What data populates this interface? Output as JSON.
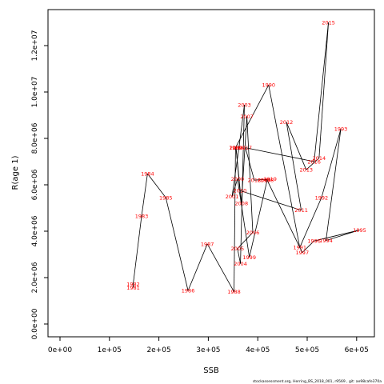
{
  "chart_data": {
    "type": "line",
    "xlabel": "SSB",
    "ylabel": "R(age 1)",
    "xlim": [
      0,
      620000
    ],
    "ylim": [
      0,
      13000000
    ],
    "x_ticks": [
      {
        "value": 0,
        "label": "0e+00"
      },
      {
        "value": 100000,
        "label": "1e+05"
      },
      {
        "value": 200000,
        "label": "2e+05"
      },
      {
        "value": 300000,
        "label": "3e+05"
      },
      {
        "value": 400000,
        "label": "4e+05"
      },
      {
        "value": 500000,
        "label": "5e+05"
      },
      {
        "value": 600000,
        "label": "6e+05"
      }
    ],
    "y_ticks": [
      {
        "value": 0,
        "label": "0.0e+00"
      },
      {
        "value": 2000000,
        "label": "2.0e+06"
      },
      {
        "value": 4000000,
        "label": "4.0e+06"
      },
      {
        "value": 6000000,
        "label": "6.0e+06"
      },
      {
        "value": 8000000,
        "label": "8.0e+06"
      },
      {
        "value": 10000000,
        "label": "1.0e+07"
      },
      {
        "value": 12000000,
        "label": "1.2e+07"
      }
    ],
    "grid": false,
    "line_color": "#000000",
    "label_color": "#ff0000",
    "series": [
      {
        "points": [
          {
            "year": "1981",
            "x": 148000,
            "y": 1570000
          },
          {
            "year": "1982",
            "x": 148000,
            "y": 1720000
          },
          {
            "year": "1983",
            "x": 165000,
            "y": 4650000
          },
          {
            "year": "1984",
            "x": 177000,
            "y": 6480000
          },
          {
            "year": "1985",
            "x": 214000,
            "y": 5450000
          },
          {
            "year": "1986",
            "x": 259000,
            "y": 1440000
          },
          {
            "year": "1987",
            "x": 298000,
            "y": 3450000
          },
          {
            "year": "1988",
            "x": 352000,
            "y": 1390000
          },
          {
            "year": "1989",
            "x": 355000,
            "y": 7600000
          },
          {
            "year": "1990",
            "x": 422000,
            "y": 10300000
          },
          {
            "year": "1991",
            "x": 485000,
            "y": 3300000
          },
          {
            "year": "1992",
            "x": 529000,
            "y": 5450000
          },
          {
            "year": "1993",
            "x": 568000,
            "y": 8400000
          },
          {
            "year": "1994",
            "x": 538000,
            "y": 3600000
          },
          {
            "year": "1995",
            "x": 606000,
            "y": 4050000
          },
          {
            "year": "1996",
            "x": 514000,
            "y": 3580000
          },
          {
            "year": "1997",
            "x": 490000,
            "y": 3080000
          },
          {
            "year": "1998",
            "x": 419000,
            "y": 6200000
          },
          {
            "year": "1999",
            "x": 383000,
            "y": 2880000
          },
          {
            "year": "2000",
            "x": 359000,
            "y": 6250000
          },
          {
            "year": "2001",
            "x": 348000,
            "y": 5500000
          },
          {
            "year": "2002",
            "x": 362000,
            "y": 7600000
          },
          {
            "year": "2003",
            "x": 373000,
            "y": 9450000
          },
          {
            "year": "2004",
            "x": 365000,
            "y": 2600000
          },
          {
            "year": "2005",
            "x": 359000,
            "y": 3250000
          },
          {
            "year": "2006",
            "x": 390000,
            "y": 3950000
          },
          {
            "year": "2007",
            "x": 378000,
            "y": 8950000
          },
          {
            "year": "2008",
            "x": 367000,
            "y": 5200000
          },
          {
            "year": "2009",
            "x": 356000,
            "y": 7600000
          },
          {
            "year": "2010",
            "x": 364000,
            "y": 5750000
          },
          {
            "year": "2011",
            "x": 488000,
            "y": 4900000
          },
          {
            "year": "2012",
            "x": 458000,
            "y": 8700000
          },
          {
            "year": "2013",
            "x": 498000,
            "y": 6650000
          },
          {
            "year": "2014",
            "x": 524000,
            "y": 7150000
          },
          {
            "year": "2015",
            "x": 543000,
            "y": 13000000
          },
          {
            "year": "2016",
            "x": 514000,
            "y": 7000000
          },
          {
            "year": "2017",
            "x": 375000,
            "y": 7600000
          },
          {
            "year": "2018",
            "x": 393000,
            "y": 6200000
          },
          {
            "year": "2019",
            "x": 425000,
            "y": 6250000
          },
          {
            "year": "2020",
            "x": 413000,
            "y": 6200000
          }
        ]
      }
    ]
  },
  "footer_text": "stockassessment.org, Herring_BS_2018_001, r9569 , git: ae98cafe370a"
}
